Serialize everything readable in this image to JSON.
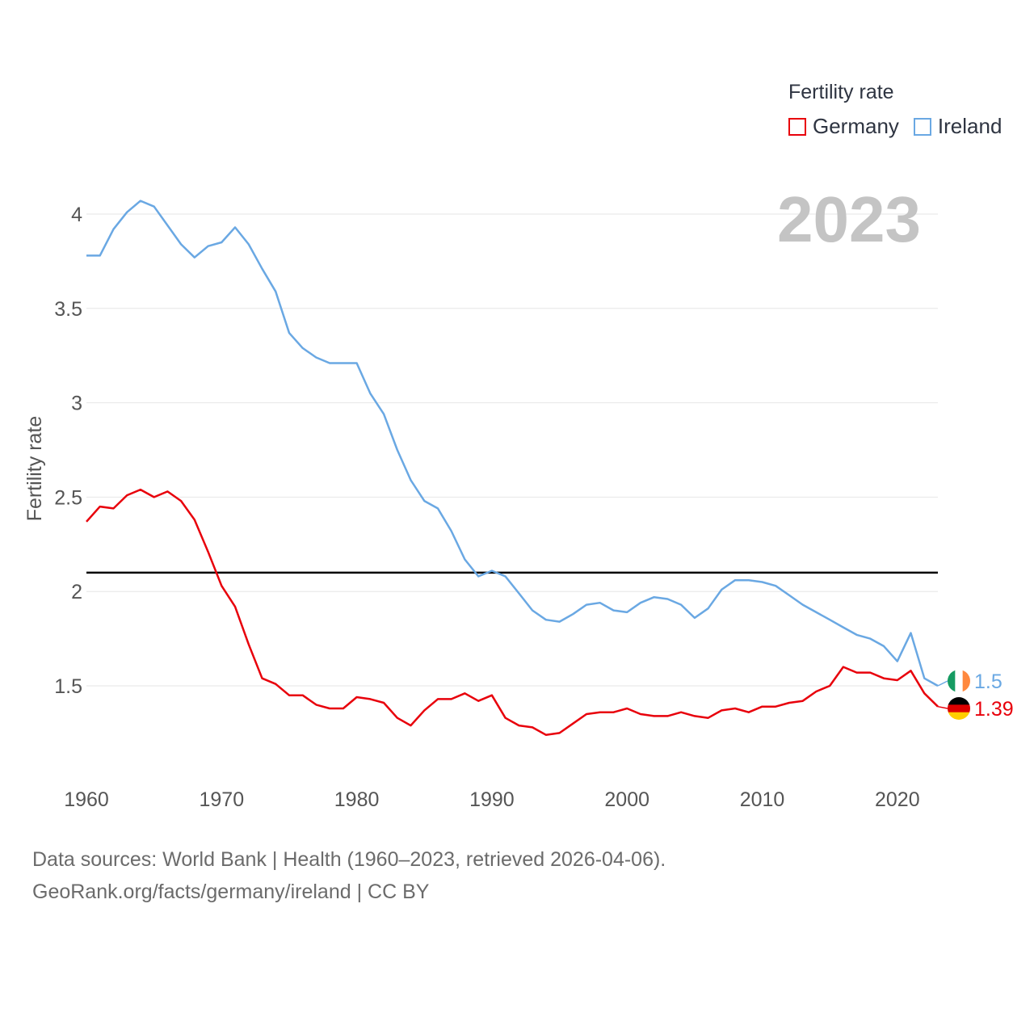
{
  "legend": {
    "title": "Fertility rate",
    "items": [
      {
        "label": "Germany",
        "color": "#e8000b"
      },
      {
        "label": "Ireland",
        "color": "#6aa8e3"
      }
    ]
  },
  "source": {
    "line1": "Data sources: World Bank | Health (1960–2023, retrieved 2026-04-06).",
    "line2": "GeoRank.org/facts/germany/ireland | CC BY"
  },
  "chart_data": {
    "type": "line",
    "title": "",
    "year_label": "2023",
    "xlabel": "",
    "ylabel": "Fertility rate",
    "xlim": [
      1960,
      2023
    ],
    "ylim": [
      1.0,
      4.2
    ],
    "x_ticks": [
      1960,
      1970,
      1980,
      1990,
      2000,
      2010,
      2020
    ],
    "y_ticks": [
      {
        "value": 1.5,
        "label": "1.5"
      },
      {
        "value": 2,
        "label": "2"
      },
      {
        "value": 2.5,
        "label": "2.5"
      },
      {
        "value": 3,
        "label": "3"
      },
      {
        "value": 3.5,
        "label": "3.5"
      },
      {
        "value": 4,
        "label": "4"
      }
    ],
    "reference_line": 2.1,
    "x": [
      1960,
      1961,
      1962,
      1963,
      1964,
      1965,
      1966,
      1967,
      1968,
      1969,
      1970,
      1971,
      1972,
      1973,
      1974,
      1975,
      1976,
      1977,
      1978,
      1979,
      1980,
      1981,
      1982,
      1983,
      1984,
      1985,
      1986,
      1987,
      1988,
      1989,
      1990,
      1991,
      1992,
      1993,
      1994,
      1995,
      1996,
      1997,
      1998,
      1999,
      2000,
      2001,
      2002,
      2003,
      2004,
      2005,
      2006,
      2007,
      2008,
      2009,
      2010,
      2011,
      2012,
      2013,
      2014,
      2015,
      2016,
      2017,
      2018,
      2019,
      2020,
      2021,
      2022,
      2023
    ],
    "series": [
      {
        "name": "Germany",
        "color": "#e8000b",
        "end_label": "1.39",
        "flag": "germany",
        "values": [
          2.37,
          2.45,
          2.44,
          2.51,
          2.54,
          2.5,
          2.53,
          2.48,
          2.38,
          2.21,
          2.03,
          1.92,
          1.72,
          1.54,
          1.51,
          1.45,
          1.45,
          1.4,
          1.38,
          1.38,
          1.44,
          1.43,
          1.41,
          1.33,
          1.29,
          1.37,
          1.43,
          1.43,
          1.46,
          1.42,
          1.45,
          1.33,
          1.29,
          1.28,
          1.24,
          1.25,
          1.3,
          1.35,
          1.36,
          1.36,
          1.38,
          1.35,
          1.34,
          1.34,
          1.36,
          1.34,
          1.33,
          1.37,
          1.38,
          1.36,
          1.39,
          1.39,
          1.41,
          1.42,
          1.47,
          1.5,
          1.6,
          1.57,
          1.57,
          1.54,
          1.53,
          1.58,
          1.46,
          1.39
        ]
      },
      {
        "name": "Ireland",
        "color": "#6aa8e3",
        "end_label": "1.5",
        "flag": "ireland",
        "values": [
          3.78,
          3.78,
          3.92,
          4.01,
          4.07,
          4.04,
          3.94,
          3.84,
          3.77,
          3.83,
          3.85,
          3.93,
          3.84,
          3.71,
          3.59,
          3.37,
          3.29,
          3.24,
          3.21,
          3.21,
          3.21,
          3.05,
          2.94,
          2.75,
          2.59,
          2.48,
          2.44,
          2.32,
          2.17,
          2.08,
          2.11,
          2.08,
          1.99,
          1.9,
          1.85,
          1.84,
          1.88,
          1.93,
          1.94,
          1.9,
          1.89,
          1.94,
          1.97,
          1.96,
          1.93,
          1.86,
          1.91,
          2.01,
          2.06,
          2.06,
          2.05,
          2.03,
          1.98,
          1.93,
          1.89,
          1.85,
          1.81,
          1.77,
          1.75,
          1.71,
          1.63,
          1.78,
          1.54,
          1.5
        ]
      }
    ]
  }
}
